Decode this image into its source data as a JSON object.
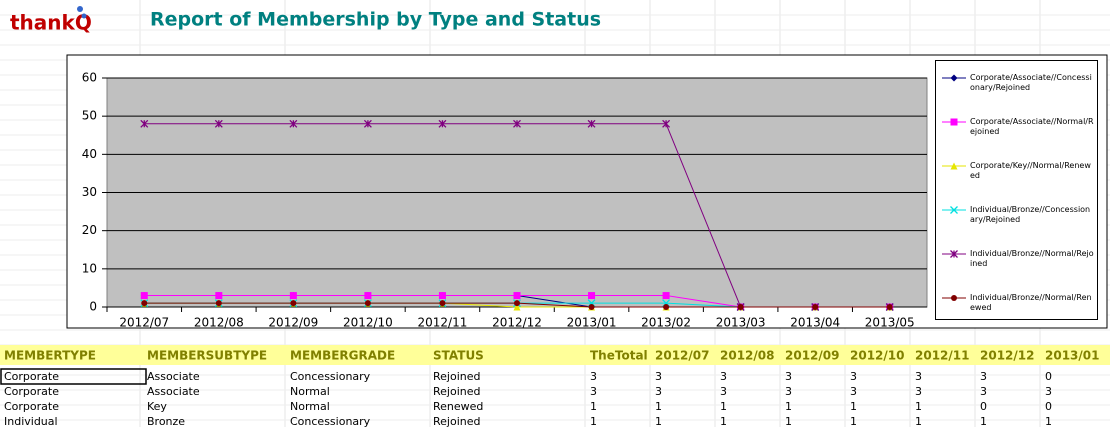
{
  "header": {
    "logo": "thankQ",
    "title": "Report of Membership by Type and Status"
  },
  "chart_data": {
    "type": "line",
    "categories": [
      "2012/07",
      "2012/08",
      "2012/09",
      "2012/10",
      "2012/11",
      "2012/12",
      "2013/01",
      "2013/02",
      "2013/03",
      "2013/04",
      "2013/05"
    ],
    "ylim": [
      0,
      60
    ],
    "yticks": [
      0,
      10,
      20,
      30,
      40,
      50,
      60
    ],
    "grid": true,
    "legend": "right",
    "series": [
      {
        "name": "Corporate/Associate//Concessionary/Rejoined",
        "color": "#000080",
        "marker": "diamond",
        "values": [
          3,
          3,
          3,
          3,
          3,
          3,
          0,
          0,
          0,
          0,
          0
        ]
      },
      {
        "name": "Corporate/Associate//Normal/Rejoined",
        "color": "#ff00ff",
        "marker": "square",
        "values": [
          3,
          3,
          3,
          3,
          3,
          3,
          3,
          3,
          0,
          0,
          0
        ]
      },
      {
        "name": "Corporate/Key//Normal/Renewed",
        "color": "#e6e600",
        "marker": "triangle",
        "values": [
          1,
          1,
          1,
          1,
          1,
          0,
          0,
          0,
          0,
          0,
          0
        ]
      },
      {
        "name": "Individual/Bronze//Concessionary/Rejoined",
        "color": "#00e0e0",
        "marker": "x",
        "values": [
          1,
          1,
          1,
          1,
          1,
          1,
          1,
          1,
          0,
          0,
          0
        ]
      },
      {
        "name": "Individual/Bronze//Normal/Rejoined",
        "color": "#800080",
        "marker": "star",
        "values": [
          48,
          48,
          48,
          48,
          48,
          48,
          48,
          48,
          0,
          0,
          0
        ]
      },
      {
        "name": "Individual/Bronze//Normal/Renewed",
        "color": "#800000",
        "marker": "circle",
        "values": [
          1,
          1,
          1,
          1,
          1,
          1,
          0,
          0,
          0,
          0,
          0
        ]
      }
    ]
  },
  "table": {
    "columns": [
      "MEMBERTYPE",
      "MEMBERSUBTYPE",
      "MEMBERGRADE",
      "STATUS",
      "TheTotal",
      "2012/07",
      "2012/08",
      "2012/09",
      "2012/10",
      "2012/11",
      "2012/12",
      "2013/01"
    ],
    "rows": [
      [
        "Corporate",
        "Associate",
        "Concessionary",
        "Rejoined",
        3,
        3,
        3,
        3,
        3,
        3,
        3,
        0
      ],
      [
        "Corporate",
        "Associate",
        "Normal",
        "Rejoined",
        3,
        3,
        3,
        3,
        3,
        3,
        3,
        3
      ],
      [
        "Corporate",
        "Key",
        "Normal",
        "Renewed",
        1,
        1,
        1,
        1,
        1,
        1,
        0,
        0
      ],
      [
        "Individual",
        "Bronze",
        "Concessionary",
        "Rejoined",
        1,
        1,
        1,
        1,
        1,
        1,
        1,
        1
      ]
    ]
  }
}
